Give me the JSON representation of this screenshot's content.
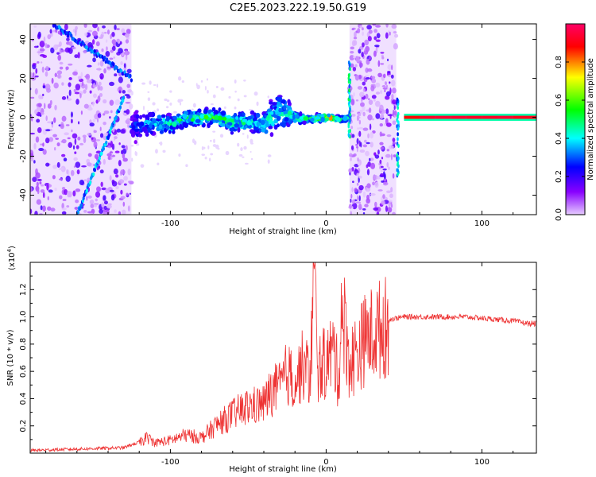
{
  "title": "C2E5.2023.222.19.50.G19",
  "chart_data": [
    {
      "type": "heatmap",
      "xlabel": "Height of straight line (km)",
      "ylabel": "Frequency (Hz)",
      "xlim": [
        -190,
        135
      ],
      "ylim": [
        -50,
        48
      ],
      "x_ticks": [
        -100,
        0,
        100
      ],
      "x_tick_labels": [
        "-100",
        "0",
        "100"
      ],
      "y_ticks": [
        -40,
        -20,
        0,
        20,
        40
      ],
      "y_tick_labels": [
        "-40",
        "-20",
        "0",
        "20",
        "40"
      ],
      "grid": false,
      "colorbar": {
        "label": "Normalized spectral amplitude",
        "range": [
          0.0,
          1.0
        ],
        "ticks": [
          0.0,
          0.2,
          0.4,
          0.6,
          0.8
        ],
        "tick_labels": [
          "0.0",
          "0.2",
          "0.4",
          "0.6",
          "0.8"
        ],
        "colormap": [
          "#e6ccff",
          "#8800ff",
          "#0000ff",
          "#00ffff",
          "#00ff00",
          "#ffff00",
          "#ff0000",
          "#ff0066"
        ]
      },
      "clutter_bands_km": [
        [
          -190,
          -125
        ],
        [
          15,
          45
        ]
      ],
      "diagonal_traces": [
        {
          "x": [
            -175,
            -125
          ],
          "y": [
            48,
            20
          ],
          "amplitude": 0.3
        },
        {
          "x": [
            -160,
            -130
          ],
          "y": [
            -50,
            10
          ],
          "amplitude": 0.35
        }
      ],
      "vertical_spikes": [
        {
          "x": 15,
          "ylim": [
            -10,
            30
          ],
          "amplitude": 0.4
        },
        {
          "x": 46,
          "ylim": [
            -30,
            10
          ],
          "amplitude": 0.35
        }
      ],
      "main_signal": {
        "x": [
          -125,
          -110,
          -100,
          -90,
          -80,
          -70,
          -60,
          -50,
          -40,
          -30,
          -20,
          -10,
          0,
          10,
          15
        ],
        "y": [
          -5,
          -3,
          -4,
          -1,
          0,
          0,
          -3,
          -2,
          -3,
          3,
          0,
          -1,
          0,
          -1,
          0
        ],
        "amplitude": [
          0.3,
          0.45,
          0.5,
          0.55,
          0.6,
          0.6,
          0.55,
          0.5,
          0.5,
          0.45,
          0.5,
          0.55,
          0.8,
          0.55,
          0.5
        ],
        "spread_hz": [
          10,
          7,
          6,
          5,
          5,
          5,
          6,
          6,
          8,
          14,
          4,
          2,
          2,
          2,
          2
        ]
      },
      "carrier": {
        "x": [
          50,
          60,
          70,
          80,
          90,
          100,
          110,
          120,
          135
        ],
        "y": [
          0,
          0,
          0,
          0,
          0,
          0,
          0,
          0,
          0
        ],
        "amplitude": [
          0.85,
          0.9,
          0.95,
          0.92,
          0.95,
          0.9,
          0.95,
          0.92,
          0.9
        ]
      }
    },
    {
      "type": "line",
      "xlabel": "Height of straight line (km)",
      "ylabel": "SNR (10 * v/v)",
      "y_multiplier_label": "(x10",
      "y_multiplier_exponent": "4",
      "xlim": [
        -190,
        135
      ],
      "ylim": [
        0,
        1.4
      ],
      "x_ticks": [
        -100,
        0,
        100
      ],
      "x_tick_labels": [
        "-100",
        "0",
        "100"
      ],
      "y_ticks": [
        0.2,
        0.4,
        0.6,
        0.8,
        1.0,
        1.2
      ],
      "y_tick_labels": [
        "0.2",
        "0.4",
        "0.6",
        "0.8",
        "1.0",
        "1.2"
      ],
      "grid": false,
      "series": [
        {
          "color": "#ee3333",
          "x": [
            -190,
            -160,
            -130,
            -120,
            -115,
            -110,
            -100,
            -90,
            -80,
            -70,
            -60,
            -50,
            -40,
            -35,
            -30,
            -25,
            -20,
            -15,
            -10,
            -8,
            -5,
            0,
            5,
            8,
            10,
            15,
            20,
            25,
            30,
            35,
            40,
            45,
            50,
            60,
            70,
            80,
            90,
            100,
            110,
            120,
            130,
            135
          ],
          "y": [
            0.02,
            0.03,
            0.04,
            0.08,
            0.12,
            0.08,
            0.1,
            0.14,
            0.12,
            0.22,
            0.3,
            0.36,
            0.38,
            0.48,
            0.5,
            0.62,
            0.55,
            0.68,
            0.6,
            1.4,
            0.65,
            0.7,
            0.8,
            0.55,
            1.15,
            0.7,
            0.78,
            0.88,
            0.92,
            0.96,
            0.98,
            0.99,
            1.0,
            1.0,
            1.0,
            1.0,
            1.0,
            0.99,
            0.98,
            0.97,
            0.95,
            0.95
          ]
        }
      ]
    }
  ]
}
